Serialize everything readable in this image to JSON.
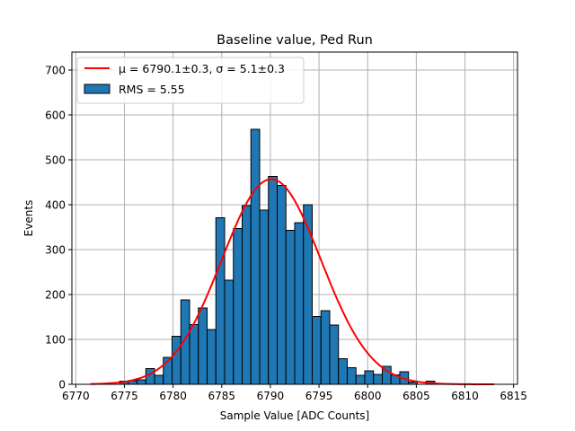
{
  "chart_data": {
    "type": "bar",
    "title": "Baseline value, Ped Run",
    "xlabel": "Sample Value [ADC Counts]",
    "ylabel": "Events",
    "xlim": [
      6769.6,
      6815.4
    ],
    "ylim": [
      0,
      740
    ],
    "xticks": [
      6770,
      6775,
      6780,
      6785,
      6790,
      6795,
      6800,
      6805,
      6810,
      6815
    ],
    "yticks": [
      0,
      100,
      200,
      300,
      400,
      500,
      600,
      700
    ],
    "grid": true,
    "legend_position": "top-left",
    "bin_width": 0.9,
    "bar_color": "#1f77b4",
    "fit_color": "#ff0000",
    "legend": {
      "fit_label": "μ = 6790.1±0.3, σ = 5.1±0.3",
      "hist_label": "RMS = 5.55"
    },
    "histogram": {
      "bin_left": [
        6771.8,
        6772.7,
        6773.6,
        6774.5,
        6775.4,
        6776.3,
        6777.2,
        6778.1,
        6779.0,
        6779.9,
        6780.8,
        6781.7,
        6782.6,
        6783.5,
        6784.4,
        6785.3,
        6786.2,
        6787.1,
        6788.0,
        6788.9,
        6789.8,
        6790.7,
        6791.6,
        6792.5,
        6793.4,
        6794.3,
        6795.2,
        6796.1,
        6797.0,
        6797.9,
        6798.8,
        6799.7,
        6800.6,
        6801.5,
        6802.4,
        6803.3,
        6804.2,
        6805.1,
        6806.0,
        6806.9,
        6807.8,
        6808.7,
        6809.6,
        6810.5,
        6811.4,
        6812.3
      ],
      "values": [
        1,
        0,
        0,
        7,
        8,
        10,
        35,
        20,
        60,
        107,
        188,
        133,
        170,
        122,
        371,
        232,
        347,
        398,
        568,
        388,
        463,
        443,
        343,
        360,
        400,
        151,
        164,
        132,
        57,
        37,
        20,
        30,
        22,
        40,
        21,
        28,
        5,
        0,
        7,
        0,
        0,
        1,
        0,
        0,
        0,
        0
      ]
    },
    "fit": {
      "mu": 6790.1,
      "sigma": 5.1,
      "amplitude": 457,
      "x_range": [
        6771.5,
        6813.0
      ]
    }
  }
}
